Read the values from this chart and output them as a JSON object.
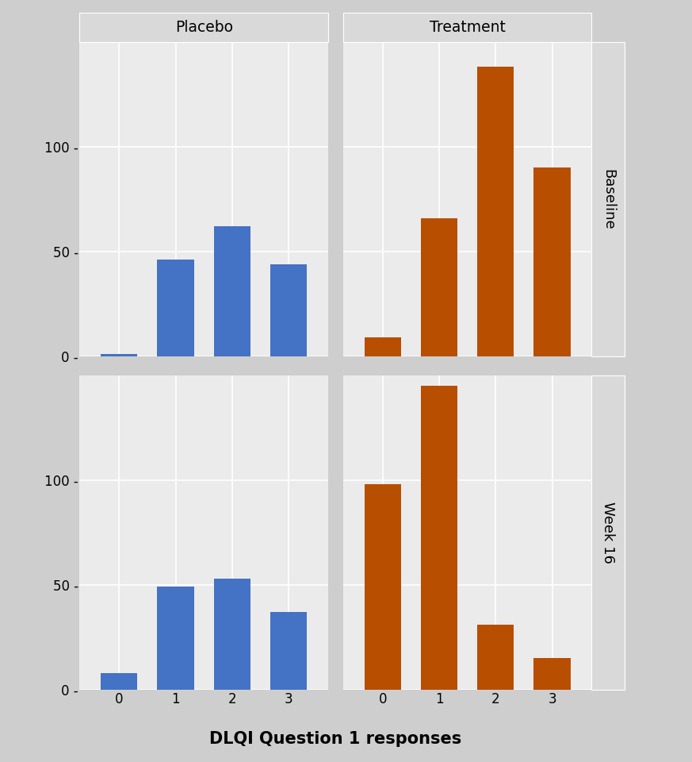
{
  "panels": [
    {
      "row": 0,
      "col": 0,
      "color": "#4472C4",
      "x": [
        0,
        1,
        2,
        3
      ],
      "y": [
        1,
        46,
        62,
        44
      ]
    },
    {
      "row": 0,
      "col": 1,
      "color": "#B84E00",
      "x": [
        0,
        1,
        2,
        3
      ],
      "y": [
        9,
        66,
        138,
        90
      ]
    },
    {
      "row": 1,
      "col": 0,
      "color": "#4472C4",
      "x": [
        0,
        1,
        2,
        3
      ],
      "y": [
        8,
        49,
        53,
        37
      ]
    },
    {
      "row": 1,
      "col": 1,
      "color": "#B84E00",
      "x": [
        0,
        1,
        2,
        3
      ],
      "y": [
        98,
        145,
        31,
        15
      ]
    }
  ],
  "col_titles": [
    "Placebo",
    "Treatment"
  ],
  "row_labels": [
    "Baseline",
    "Week 16"
  ],
  "xlabel": "DLQI Question 1 responses",
  "panel_bg": "#EBEBEB",
  "strip_bg": "#D9D9D9",
  "outer_bg": "#CECECE",
  "bar_width": 0.65,
  "ylim": [
    0,
    150
  ],
  "yticks": [
    0,
    50,
    100
  ],
  "xticks": [
    0,
    1,
    2,
    3
  ],
  "grid_color": "#FFFFFF",
  "grid_lw": 1.2
}
